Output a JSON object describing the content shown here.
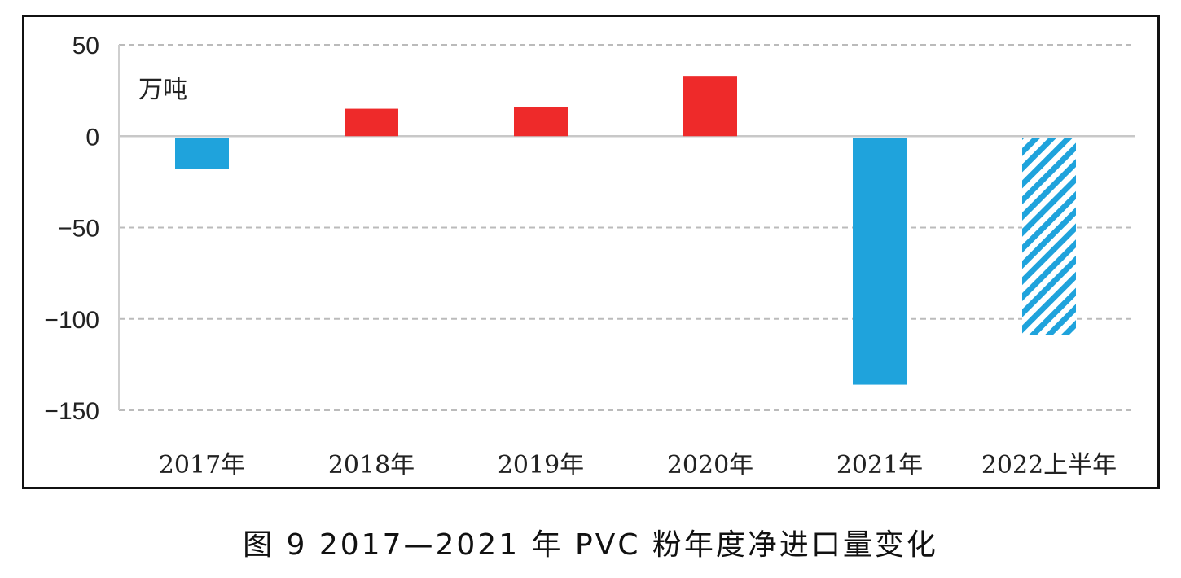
{
  "caption": "图 9  2017—2021 年 PVC 粉年度净进口量变化",
  "chart_data": {
    "type": "bar",
    "ylabel": "万吨",
    "ylim": [
      -150,
      50
    ],
    "yticks": [
      50,
      0,
      -50,
      -100,
      -150
    ],
    "grid": true,
    "categories": [
      "2017年",
      "2018年",
      "2019年",
      "2020年",
      "2021年",
      "2022上半年"
    ],
    "values": [
      -18,
      15,
      16,
      33,
      -136,
      -109
    ],
    "bar_styles": [
      "negative",
      "positive",
      "positive",
      "positive",
      "negative",
      "negative-hatched"
    ],
    "colors": {
      "positive": "#ee2a2a",
      "negative": "#1fa3dc",
      "grid": "#bbbbbb",
      "zero_line": "#c8c8c8"
    }
  }
}
